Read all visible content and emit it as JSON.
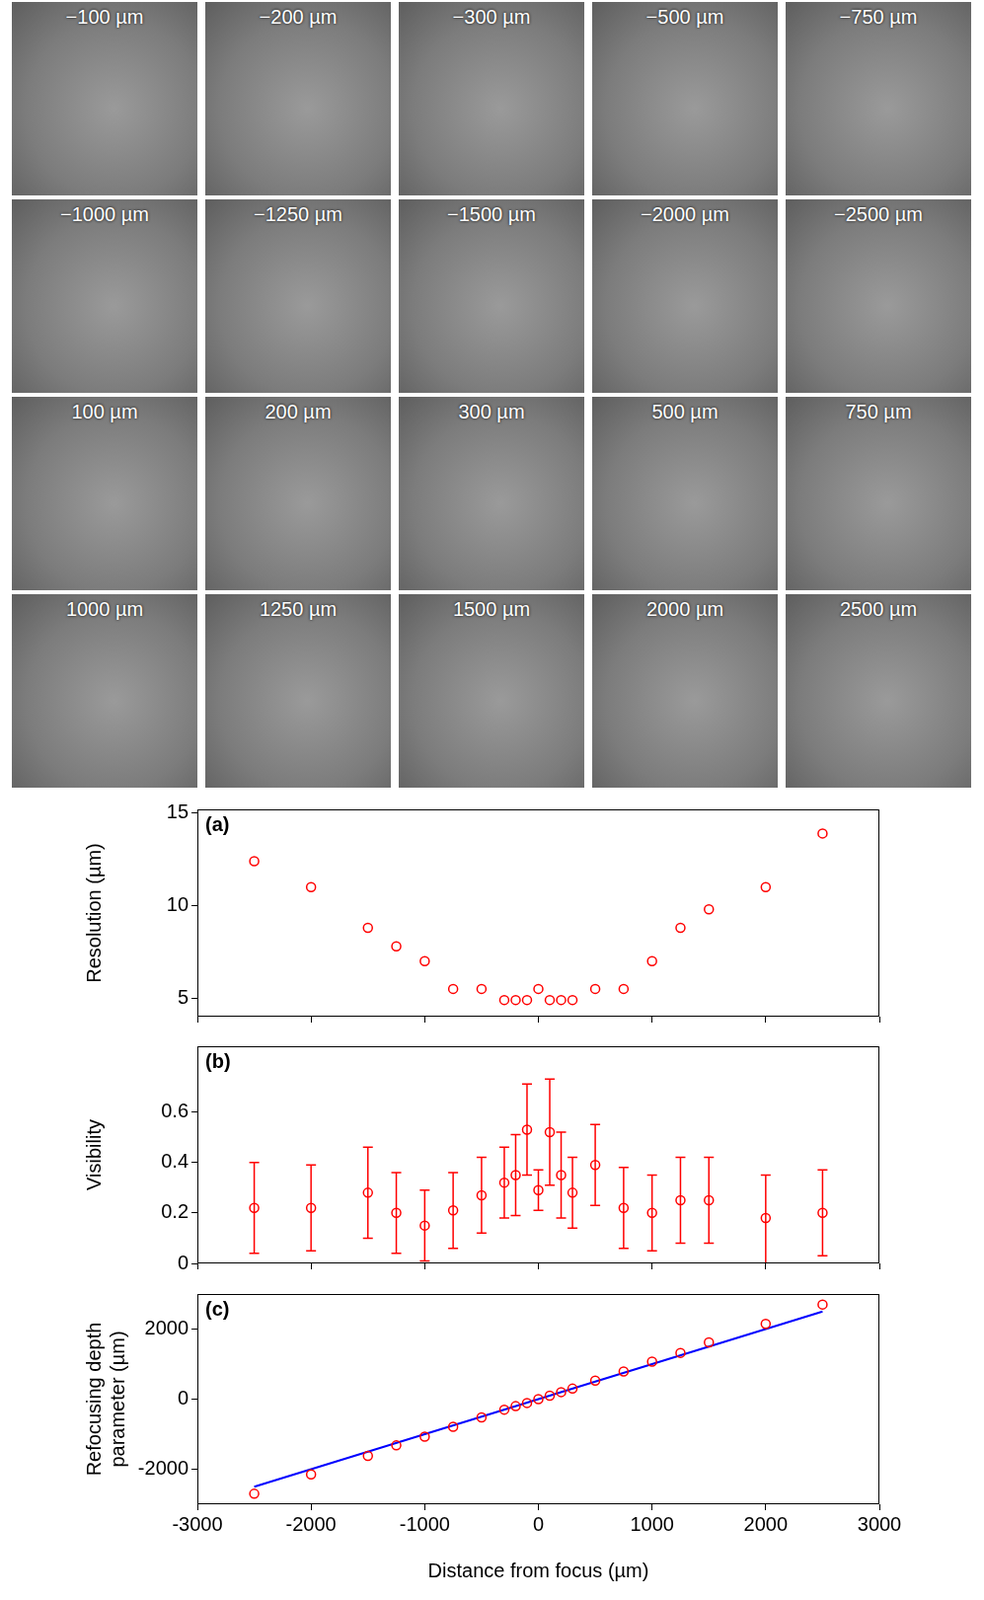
{
  "image_grid": {
    "labels": [
      "−100 µm",
      "−200 µm",
      "−300 µm",
      "−500 µm",
      "−750 µm",
      "−1000 µm",
      "−1250 µm",
      "−1500 µm",
      "−2000 µm",
      "−2500 µm",
      "100 µm",
      "200 µm",
      "300 µm",
      "500 µm",
      "750 µm",
      "1000 µm",
      "1250 µm",
      "1500 µm",
      "2000 µm",
      "2500 µm"
    ]
  },
  "chart_data": [
    {
      "type": "scatter",
      "panel_label": "(a)",
      "y_label": "Resolution (µm)",
      "x": [
        -2500,
        -2000,
        -1500,
        -1250,
        -1000,
        -750,
        -500,
        -300,
        -200,
        -100,
        0,
        100,
        200,
        300,
        500,
        750,
        1000,
        1250,
        1500,
        2000,
        2500
      ],
      "series": [
        {
          "color": "#ff0000",
          "marker": "circle",
          "values": [
            12.4,
            11.0,
            8.8,
            7.8,
            7.0,
            5.5,
            5.5,
            4.9,
            4.9,
            4.9,
            5.5,
            4.9,
            4.9,
            4.9,
            5.5,
            5.5,
            7.0,
            8.8,
            9.8,
            11.0,
            13.9
          ]
        }
      ],
      "xlim": [
        -3000,
        3000
      ],
      "xticks": [
        -3000,
        -2000,
        -1000,
        0,
        1000,
        2000,
        3000
      ],
      "ylim": [
        4,
        15.2
      ],
      "yticks": [
        5,
        10,
        15
      ],
      "grid": false,
      "tick_labels": "y"
    },
    {
      "type": "scatter",
      "panel_label": "(b)",
      "y_label": "Visibility",
      "x": [
        -2500,
        -2000,
        -1500,
        -1250,
        -1000,
        -750,
        -500,
        -300,
        -200,
        -100,
        0,
        100,
        200,
        300,
        500,
        750,
        1000,
        1250,
        1500,
        2000,
        2500
      ],
      "series": [
        {
          "color": "#ff0000",
          "marker": "circle",
          "values": [
            0.22,
            0.22,
            0.28,
            0.2,
            0.15,
            0.21,
            0.27,
            0.32,
            0.35,
            0.53,
            0.29,
            0.52,
            0.35,
            0.28,
            0.39,
            0.22,
            0.2,
            0.25,
            0.25,
            0.18,
            0.2
          ],
          "error_low": [
            0.04,
            0.05,
            0.1,
            0.04,
            0.01,
            0.06,
            0.12,
            0.18,
            0.19,
            0.35,
            0.21,
            0.31,
            0.18,
            0.14,
            0.23,
            0.06,
            0.05,
            0.08,
            0.08,
            0.0,
            0.03
          ],
          "error_high": [
            0.4,
            0.39,
            0.46,
            0.36,
            0.29,
            0.36,
            0.42,
            0.46,
            0.51,
            0.71,
            0.37,
            0.73,
            0.52,
            0.42,
            0.55,
            0.38,
            0.35,
            0.42,
            0.42,
            0.35,
            0.37
          ]
        }
      ],
      "xlim": [
        -3000,
        3000
      ],
      "xticks": [
        -3000,
        -2000,
        -1000,
        0,
        1000,
        2000,
        3000
      ],
      "ylim": [
        0,
        0.86
      ],
      "yticks": [
        0,
        0.2,
        0.4,
        0.6
      ],
      "grid": false,
      "tick_labels": "y"
    },
    {
      "type": "scatter",
      "panel_label": "(c)",
      "y_label": "Refocusing depth parameter (µm)",
      "x_label": "Distance from focus (µm)",
      "x": [
        -2500,
        -2000,
        -1500,
        -1250,
        -1000,
        -750,
        -500,
        -300,
        -200,
        -100,
        0,
        100,
        200,
        300,
        500,
        750,
        1000,
        1250,
        1500,
        2000,
        2500
      ],
      "series": [
        {
          "color": "#ff0000",
          "marker": "circle",
          "values": [
            -2700,
            -2150,
            -1620,
            -1320,
            -1070,
            -790,
            -520,
            -300,
            -200,
            -110,
            0,
            100,
            200,
            300,
            530,
            790,
            1070,
            1320,
            1620,
            2150,
            2700
          ]
        },
        {
          "type": "line",
          "color": "#0000ff",
          "line_style": "solid",
          "x": [
            -2500,
            2500
          ],
          "values": [
            -2500,
            2500
          ]
        }
      ],
      "xlim": [
        -3000,
        3000
      ],
      "xticks": [
        -3000,
        -2000,
        -1000,
        0,
        1000,
        2000,
        3000
      ],
      "ylim": [
        -3000,
        3000
      ],
      "yticks": [
        -2000,
        0,
        2000
      ],
      "grid": false
    }
  ]
}
